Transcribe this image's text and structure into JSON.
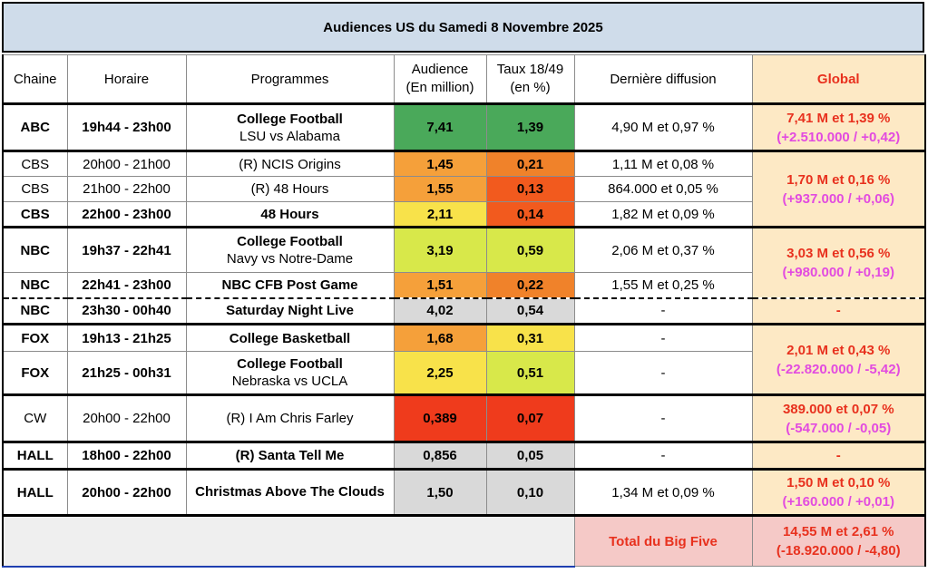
{
  "title": "Audiences US du Samedi 8 Novembre 2025",
  "headers": {
    "chaine": "Chaine",
    "horaire": "Horaire",
    "programmes": "Programmes",
    "audience_1": "Audience",
    "audience_2": "(En million)",
    "taux_1": "Taux 18/49",
    "taux_2": "(en %)",
    "derniere": "Dernière diffusion",
    "global": "Global"
  },
  "colors": {
    "green": "#4aa95a",
    "orange": "#f5a03a",
    "orange_dark": "#f0822a",
    "red_orange": "#f25a1e",
    "red": "#ef3b1c",
    "yellow": "#f8e24a",
    "lime": "#d8e84a",
    "gray": "#d9d9d9"
  },
  "rows": [
    {
      "chaine": "ABC",
      "horaire": "19h44 - 23h00",
      "prog": "College Football",
      "prog_sub": "LSU vs Alabama",
      "audience": "7,41",
      "taux": "1,39",
      "derniere": "4,90 M et 0,97 %"
    },
    {
      "chaine": "CBS",
      "horaire": "20h00 - 21h00",
      "prog": "(R) NCIS Origins",
      "audience": "1,45",
      "taux": "0,21",
      "derniere": "1,11 M et 0,08 %"
    },
    {
      "chaine": "CBS",
      "horaire": "21h00 - 22h00",
      "prog": "(R) 48 Hours",
      "audience": "1,55",
      "taux": "0,13",
      "derniere": "864.000 et 0,05 %"
    },
    {
      "chaine": "CBS",
      "horaire": "22h00 - 23h00",
      "prog": "48 Hours",
      "audience": "2,11",
      "taux": "0,14",
      "derniere": "1,82 M et 0,09 %"
    },
    {
      "chaine": "NBC",
      "horaire": "19h37 - 22h41",
      "prog": "College Football",
      "prog_sub": "Navy vs Notre-Dame",
      "audience": "3,19",
      "taux": "0,59",
      "derniere": "2,06 M et 0,37 %"
    },
    {
      "chaine": "NBC",
      "horaire": "22h41 - 23h00",
      "prog": "NBC CFB Post Game",
      "audience": "1,51",
      "taux": "0,22",
      "derniere": "1,55 M et 0,25 %"
    },
    {
      "chaine": "NBC",
      "horaire": "23h30 - 00h40",
      "prog": "Saturday Night Live",
      "audience": "4,02",
      "taux": "0,54",
      "derniere": "-"
    },
    {
      "chaine": "FOX",
      "horaire": "19h13 - 21h25",
      "prog": "College Basketball",
      "audience": "1,68",
      "taux": "0,31",
      "derniere": "-"
    },
    {
      "chaine": "FOX",
      "horaire": "21h25 - 00h31",
      "prog": "College Football",
      "prog_sub": "Nebraska vs UCLA",
      "audience": "2,25",
      "taux": "0,51",
      "derniere": "-"
    },
    {
      "chaine": "CW",
      "horaire": "20h00 - 22h00",
      "prog": "(R) I Am Chris Farley",
      "audience": "0,389",
      "taux": "0,07",
      "derniere": "-"
    },
    {
      "chaine": "HALL",
      "horaire": "18h00 - 22h00",
      "prog": "(R) Santa Tell Me",
      "audience": "0,856",
      "taux": "0,05",
      "derniere": "-"
    },
    {
      "chaine": "HALL",
      "horaire": "20h00 - 22h00",
      "prog": "Christmas Above The Clouds",
      "audience": "1,50",
      "taux": "0,10",
      "derniere": "1,34 M et 0,09 %"
    }
  ],
  "global": {
    "abc_1": "7,41 M et 1,39 %",
    "abc_2": "(+2.510.000 / +0,42)",
    "cbs_1": "1,70 M et 0,16 %",
    "cbs_2": "(+937.000 / +0,06)",
    "nbc_1": "3,03 M et 0,56 %",
    "nbc_2": "(+980.000 / +0,19)",
    "snl": "-",
    "fox_1": "2,01 M et 0,43 %",
    "fox_2": "(-22.820.000 / -5,42)",
    "cw_1": "389.000 et 0,07 %",
    "cw_2": "(-547.000 / -0,05)",
    "santa": "-",
    "hall_1": "1,50 M et 0,10 %",
    "hall_2": "(+160.000 / +0,01)"
  },
  "footer": {
    "label": "Total du Big Five",
    "total_1": "14,55 M et 2,61 %",
    "total_2": "(-18.920.000 / -4,80)"
  }
}
